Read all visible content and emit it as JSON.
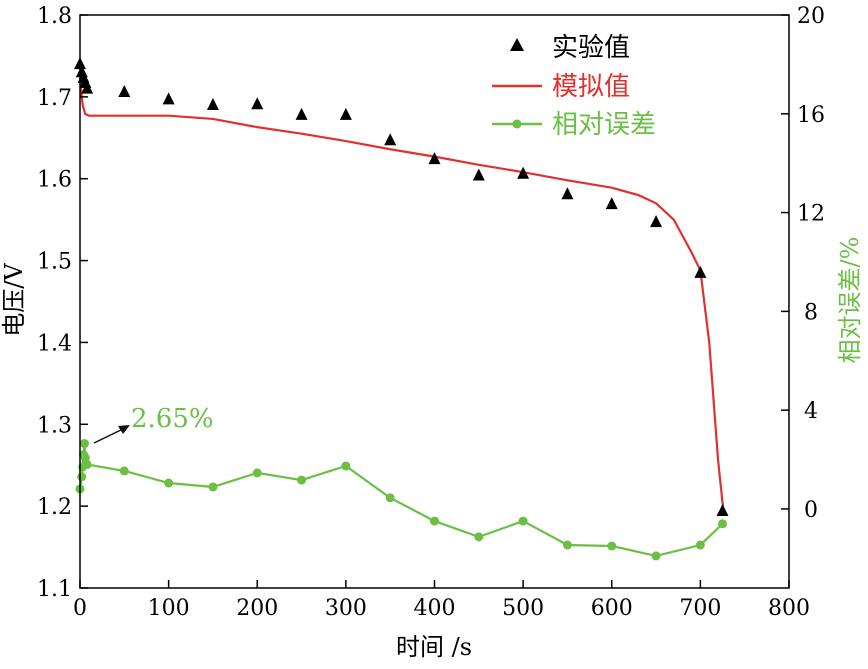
{
  "chart_data": {
    "type": "line",
    "xlabel": "时间 /s",
    "ylabel": "电压/V",
    "y2label": "相对误差/%",
    "xlim": [
      0,
      800
    ],
    "ylim": [
      1.1,
      1.8
    ],
    "y2lim": [
      -3.2,
      20
    ],
    "xticks": [
      "0",
      "100",
      "200",
      "300",
      "400",
      "500",
      "600",
      "700",
      "800"
    ],
    "yticks": [
      "1.1",
      "1.2",
      "1.3",
      "1.4",
      "1.5",
      "1.6",
      "1.7",
      "1.8"
    ],
    "y2ticks": [
      "0",
      "4",
      "8",
      "12",
      "16",
      "20"
    ],
    "grid": false,
    "legend_position": "top-right",
    "colors": {
      "experimental": "#000000",
      "simulated": "#e03030",
      "error": "#6cbf45"
    },
    "series": [
      {
        "name": "实验值",
        "axis": "left",
        "style": "triangle-markers",
        "x": [
          0,
          2,
          4,
          6,
          8,
          50,
          100,
          150,
          200,
          250,
          300,
          350,
          400,
          450,
          500,
          550,
          600,
          650,
          700,
          725
        ],
        "y": [
          1.74,
          1.73,
          1.723,
          1.717,
          1.71,
          1.706,
          1.697,
          1.69,
          1.691,
          1.678,
          1.678,
          1.647,
          1.624,
          1.604,
          1.606,
          1.581,
          1.569,
          1.547,
          1.485,
          1.194
        ]
      },
      {
        "name": "模拟值",
        "axis": "left",
        "style": "line",
        "x": [
          0,
          3,
          6,
          10,
          50,
          100,
          150,
          200,
          250,
          300,
          350,
          400,
          450,
          500,
          550,
          600,
          630,
          650,
          670,
          690,
          700,
          710,
          720,
          726
        ],
        "y": [
          1.723,
          1.69,
          1.679,
          1.677,
          1.677,
          1.677,
          1.673,
          1.663,
          1.655,
          1.646,
          1.636,
          1.627,
          1.617,
          1.608,
          1.598,
          1.589,
          1.58,
          1.57,
          1.55,
          1.51,
          1.488,
          1.4,
          1.256,
          1.194
        ]
      },
      {
        "name": "相对误差",
        "axis": "right",
        "style": "line-circle-markers",
        "x": [
          0,
          2,
          3,
          4,
          5,
          6,
          8,
          50,
          100,
          150,
          200,
          250,
          300,
          350,
          400,
          450,
          500,
          550,
          600,
          650,
          700,
          725
        ],
        "y": [
          0.81,
          1.3,
          1.7,
          2.2,
          2.65,
          2.07,
          1.8,
          1.54,
          1.05,
          0.89,
          1.46,
          1.17,
          1.74,
          0.45,
          -0.49,
          -1.13,
          -0.49,
          -1.46,
          -1.5,
          -1.9,
          -1.46,
          -0.6
        ]
      }
    ],
    "annotations": [
      {
        "text": "2.65%",
        "x": 5,
        "y": 2.65,
        "axis": "right"
      }
    ]
  }
}
